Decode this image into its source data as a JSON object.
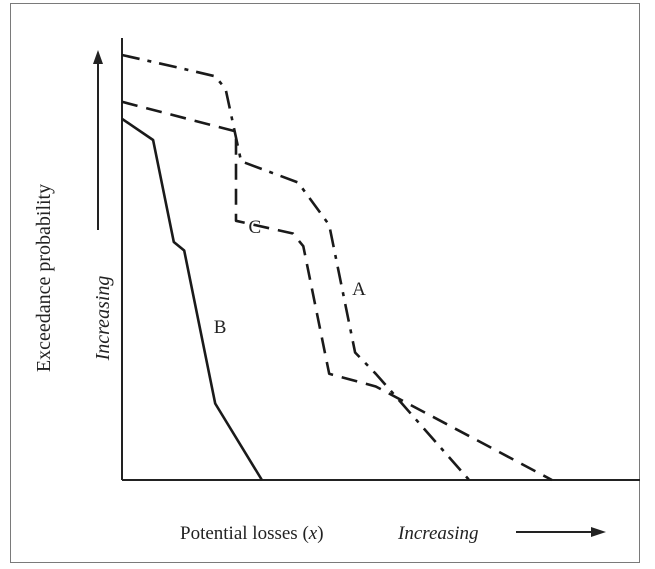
{
  "chart_data": {
    "type": "line",
    "title": "",
    "xlabel": "Potential losses (x)",
    "xlabel_main": "Potential losses (",
    "xlabel_var": "x",
    "xlabel_close": ")",
    "x_direction_label": "Increasing",
    "ylabel": "Exceedance probability",
    "y_direction_label": "Increasing",
    "xlim": [
      0,
      100
    ],
    "ylim": [
      0,
      100
    ],
    "grid": false,
    "legend": "none (curves labeled inline)",
    "axis_ticks": "none",
    "series": [
      {
        "name": "A",
        "style": "dash-dot",
        "x": [
          0,
          11,
          18,
          20,
          23,
          34,
          40,
          45,
          49,
          67
        ],
        "y": [
          100,
          97,
          95,
          92,
          75,
          70,
          60,
          30,
          25,
          0
        ]
      },
      {
        "name": "B",
        "style": "solid",
        "x": [
          0,
          6,
          10,
          12,
          18,
          27
        ],
        "y": [
          85,
          80,
          56,
          54,
          18,
          0
        ]
      },
      {
        "name": "C",
        "style": "dashed",
        "x": [
          0,
          22,
          22,
          33,
          35,
          40,
          49,
          83
        ],
        "y": [
          89,
          82,
          61,
          58,
          55,
          25,
          22,
          0
        ]
      }
    ]
  }
}
